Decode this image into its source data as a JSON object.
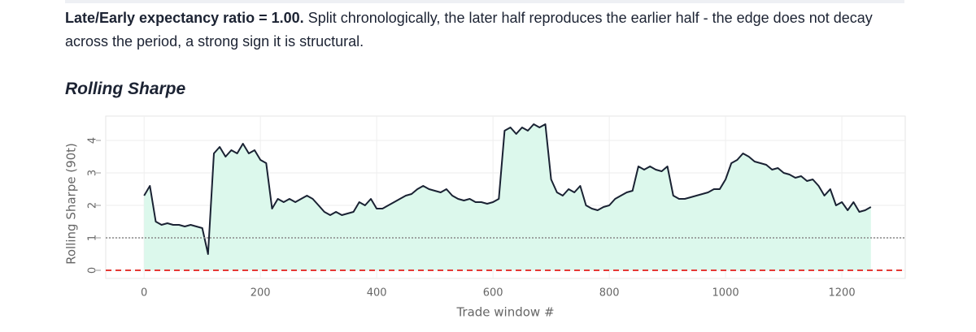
{
  "paragraph": {
    "bold": "Late/Early expectancy ratio = 1.00.",
    "text": "Split chronologically, the later half reproduces the earlier half - the edge does not decay across the period, a strong sign it is structural."
  },
  "section_title": "Rolling Sharpe",
  "chart_data": {
    "type": "line",
    "xlabel": "Trade window #",
    "ylabel": "Rolling Sharpe (90t)",
    "x": [
      0,
      10,
      20,
      30,
      40,
      50,
      60,
      70,
      80,
      90,
      100,
      110,
      120,
      130,
      140,
      150,
      160,
      170,
      180,
      190,
      200,
      210,
      220,
      230,
      240,
      250,
      260,
      270,
      280,
      290,
      300,
      310,
      320,
      330,
      340,
      350,
      360,
      370,
      380,
      390,
      400,
      410,
      420,
      430,
      440,
      450,
      460,
      470,
      480,
      490,
      500,
      510,
      520,
      530,
      540,
      550,
      560,
      570,
      580,
      590,
      600,
      610,
      620,
      630,
      640,
      650,
      660,
      670,
      680,
      690,
      700,
      710,
      720,
      730,
      740,
      750,
      760,
      770,
      780,
      790,
      800,
      810,
      820,
      830,
      840,
      850,
      860,
      870,
      880,
      890,
      900,
      910,
      920,
      930,
      940,
      950,
      960,
      970,
      980,
      990,
      1000,
      1010,
      1020,
      1030,
      1040,
      1050,
      1060,
      1070,
      1080,
      1090,
      1100,
      1110,
      1120,
      1130,
      1140,
      1150,
      1160,
      1170,
      1180,
      1190,
      1200,
      1210,
      1220,
      1230,
      1240,
      1250
    ],
    "values": [
      2.3,
      2.6,
      1.5,
      1.4,
      1.45,
      1.4,
      1.4,
      1.35,
      1.4,
      1.35,
      1.3,
      0.5,
      3.6,
      3.8,
      3.5,
      3.7,
      3.6,
      3.9,
      3.6,
      3.7,
      3.4,
      3.3,
      1.9,
      2.2,
      2.1,
      2.2,
      2.1,
      2.2,
      2.3,
      2.2,
      2.0,
      1.8,
      1.7,
      1.8,
      1.7,
      1.75,
      1.8,
      2.1,
      2.0,
      2.2,
      1.9,
      1.9,
      2.0,
      2.1,
      2.2,
      2.3,
      2.35,
      2.5,
      2.6,
      2.5,
      2.45,
      2.4,
      2.5,
      2.3,
      2.2,
      2.15,
      2.2,
      2.1,
      2.1,
      2.05,
      2.1,
      2.2,
      4.3,
      4.4,
      4.2,
      4.4,
      4.3,
      4.5,
      4.4,
      4.5,
      2.8,
      2.4,
      2.3,
      2.5,
      2.4,
      2.6,
      2.0,
      1.9,
      1.85,
      1.95,
      2.0,
      2.2,
      2.3,
      2.4,
      2.45,
      3.2,
      3.1,
      3.2,
      3.1,
      3.05,
      3.2,
      2.3,
      2.2,
      2.2,
      2.25,
      2.3,
      2.35,
      2.4,
      2.5,
      2.5,
      2.8,
      3.3,
      3.4,
      3.6,
      3.5,
      3.35,
      3.3,
      3.25,
      3.1,
      3.15,
      3.0,
      2.95,
      2.85,
      2.9,
      2.75,
      2.8,
      2.6,
      2.3,
      2.5,
      2.0,
      2.1,
      1.85,
      2.1,
      1.8,
      1.85,
      1.95
    ],
    "color": "#1a2233",
    "fill_color": "#dcf8ec",
    "xlim": [
      -66,
      1309
    ],
    "ylim": [
      -0.25,
      4.75
    ],
    "xticks": [
      0,
      200,
      400,
      600,
      800,
      1000,
      1200
    ],
    "yticks": [
      0,
      1,
      2,
      3,
      4
    ],
    "grid": true,
    "reference_lines": [
      {
        "value": 0,
        "color": "#e53935",
        "style": "dashed"
      },
      {
        "value": 1,
        "color": "#888888",
        "style": "dotted"
      }
    ]
  }
}
